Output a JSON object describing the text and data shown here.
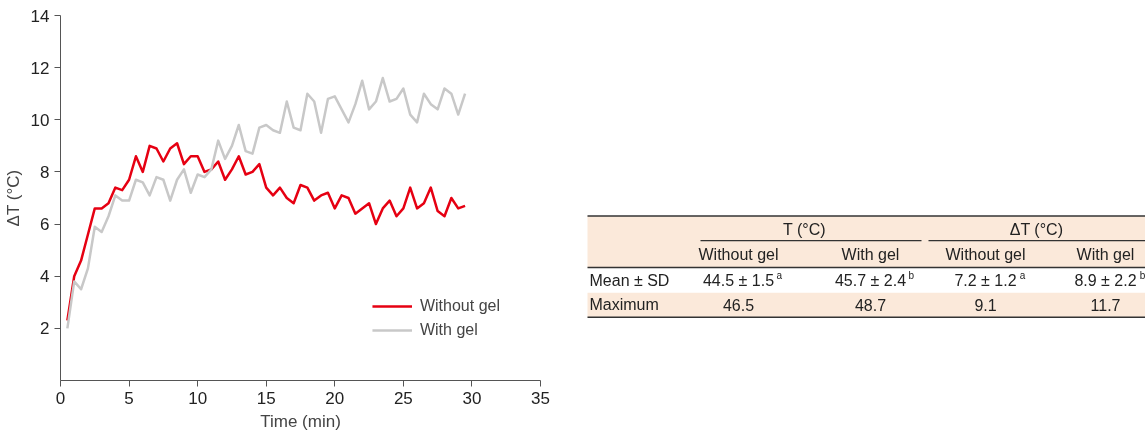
{
  "chart_data": [
    {
      "type": "line",
      "xlabel": "Time (min)",
      "ylabel": "ΔT (°C)",
      "xlim": [
        0,
        35
      ],
      "ylim": [
        0,
        14
      ],
      "xticks": [
        0,
        5,
        10,
        15,
        20,
        25,
        30,
        35
      ],
      "yticks": [
        2,
        4,
        6,
        8,
        10,
        12,
        14
      ],
      "grid": false,
      "legend": "bottom right",
      "marker": "none",
      "line_style": "solid",
      "x": [
        0.5,
        1,
        1.5,
        2,
        2.5,
        3,
        3.5,
        4,
        4.5,
        5,
        5.5,
        6,
        6.5,
        7,
        7.5,
        8,
        8.5,
        9,
        9.5,
        10,
        10.5,
        11,
        11.5,
        12,
        12.5,
        13,
        13.5,
        14,
        14.5,
        15,
        15.5,
        16,
        16.5,
        17,
        17.5,
        18,
        18.5,
        19,
        19.5,
        20,
        20.5,
        21,
        21.5,
        22,
        22.5,
        23,
        23.5,
        24,
        24.5,
        25,
        25.5,
        26,
        26.5,
        27,
        27.5,
        28,
        28.5,
        29,
        29.5
      ],
      "series": [
        {
          "name": "Without gel",
          "color": "#e60012",
          "values": [
            2.3,
            4.0,
            4.6,
            5.6,
            6.6,
            6.6,
            6.8,
            7.4,
            7.3,
            7.7,
            8.6,
            8.0,
            9.0,
            8.9,
            8.4,
            8.9,
            9.1,
            8.3,
            8.6,
            8.6,
            8.0,
            8.1,
            8.4,
            7.7,
            8.1,
            8.6,
            7.9,
            8.0,
            8.3,
            7.4,
            7.1,
            7.4,
            7.0,
            6.8,
            7.5,
            7.4,
            6.9,
            7.1,
            7.2,
            6.6,
            7.1,
            7.0,
            6.4,
            6.6,
            6.8,
            6.0,
            6.6,
            6.9,
            6.3,
            6.6,
            7.4,
            6.6,
            6.8,
            7.4,
            6.5,
            6.3,
            7.0,
            6.6,
            6.7
          ]
        },
        {
          "name": "With gel",
          "color": "#c8c8c8",
          "values": [
            2.0,
            3.8,
            3.5,
            4.3,
            5.9,
            5.7,
            6.3,
            7.1,
            6.9,
            6.9,
            7.7,
            7.6,
            7.1,
            7.8,
            7.7,
            6.9,
            7.7,
            8.1,
            7.2,
            7.9,
            7.8,
            8.1,
            9.2,
            8.5,
            9.0,
            9.8,
            8.8,
            8.7,
            9.7,
            9.8,
            9.6,
            9.5,
            10.7,
            9.7,
            9.6,
            11.0,
            10.7,
            9.5,
            10.8,
            10.9,
            10.4,
            9.9,
            10.6,
            11.5,
            10.4,
            10.7,
            11.6,
            10.7,
            10.8,
            11.2,
            10.2,
            9.9,
            11.0,
            10.6,
            10.4,
            11.2,
            11.0,
            10.2,
            11.0
          ]
        }
      ]
    },
    {
      "type": "other",
      "annotations": [
        "T (°C)",
        "ΔT (°C)",
        "Without gel",
        "With gel",
        "Without gel",
        "With gel",
        "Mean ± SD",
        "44.5 ± 1.5$^{a}$",
        "45.7 ± 2.4$^{b}$",
        "7.2 ± 1.2$^{a}$",
        "8.9 ± 2.2$^{b}$",
        "Maximum",
        "46.5",
        "48.7",
        "9.1",
        "11.7"
      ]
    }
  ]
}
